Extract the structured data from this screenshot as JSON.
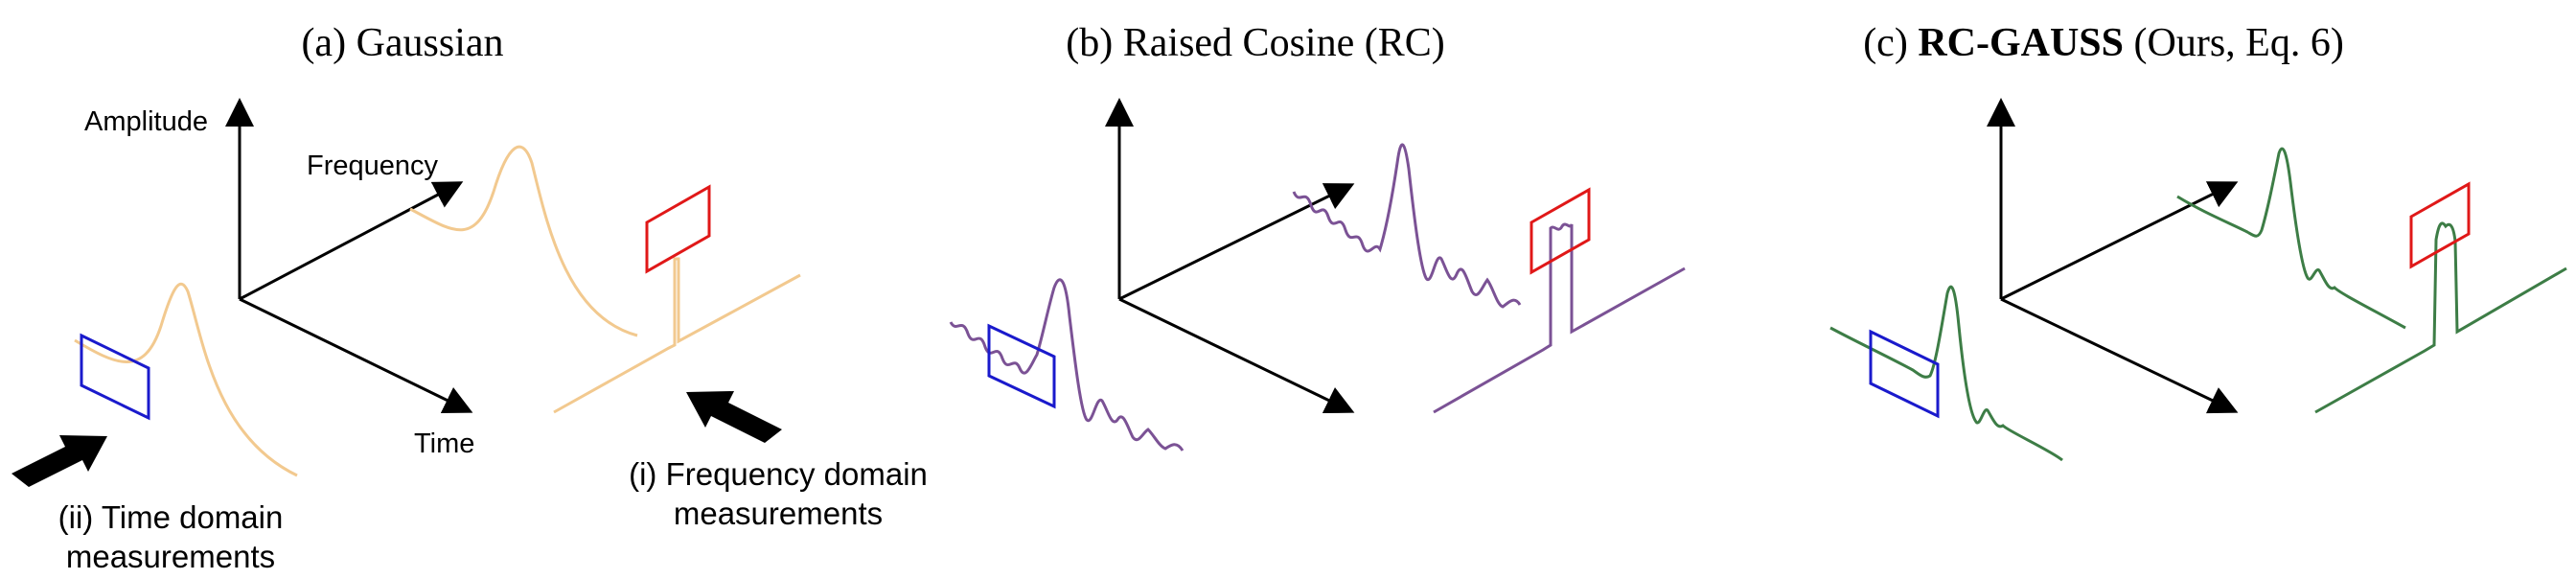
{
  "panels": [
    {
      "id": "a",
      "title_prefix": "(a) ",
      "title_main": "Gaussian",
      "title_suffix": "",
      "color": "#f2c98f"
    },
    {
      "id": "b",
      "title_prefix": "(b) ",
      "title_main": "Raised Cosine (RC)",
      "title_suffix": "",
      "color": "#7b5295"
    },
    {
      "id": "c",
      "title_prefix": "(c) ",
      "title_main": "RC-GAUSS",
      "title_suffix": " (Ours, Eq. 6)",
      "color": "#3d7d46"
    }
  ],
  "axes": {
    "amplitude": "Amplitude",
    "frequency": "Frequency",
    "time": "Time"
  },
  "notes": {
    "time_domain_line1": "(ii) Time domain",
    "time_domain_line2": "measurements",
    "freq_domain_line1": "(i) Frequency domain",
    "freq_domain_line2": "measurements"
  },
  "colors": {
    "axis": "#000000",
    "time_window": "#1a1acc",
    "freq_window": "#e01818",
    "big_arrow": "#000000"
  }
}
